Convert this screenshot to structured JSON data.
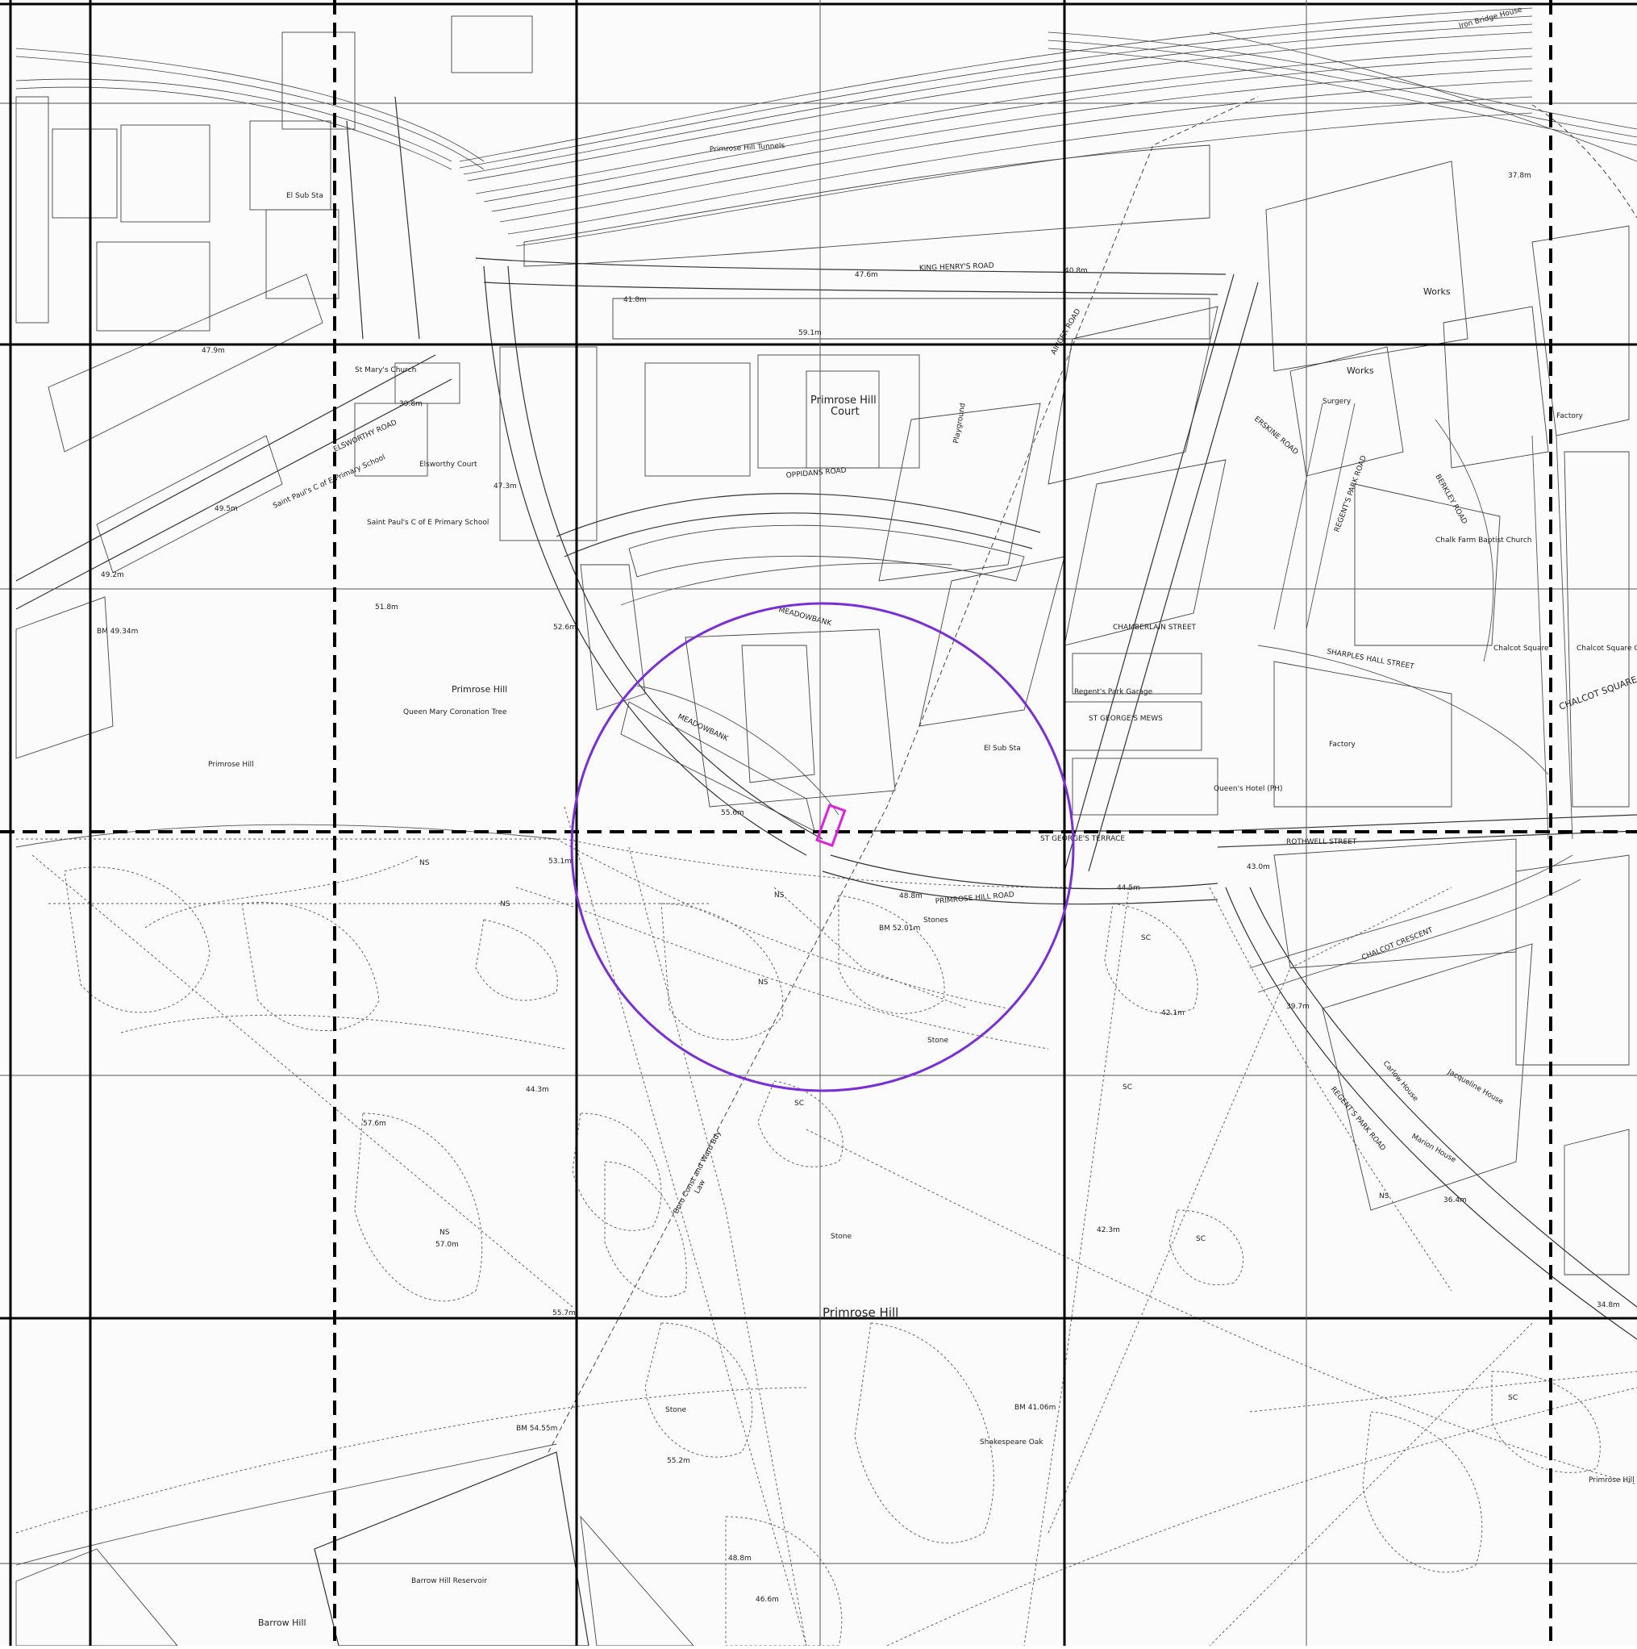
{
  "map": {
    "labels": {
      "primrose_hill_park": "Primrose Hill",
      "primrose_hill_left": "Primrose Hill",
      "primrose_hill_right": "Primrose Hill",
      "primrose_hill_court": "Primrose Hill",
      "primrose_hill_court2": "Court",
      "barrow_hill": "Barrow Hill",
      "barrow_hill_reservoir": "Barrow Hill Reservoir",
      "king_henrys_road": "KING HENRY'S ROAD",
      "primrose_hill_road": "PRIMROSE HILL ROAD",
      "elsworthy_road": "ELSWORTHY ROAD",
      "oppidans_road": "OPPIDANS ROAD",
      "regents_park_road": "REGENT'S PARK ROAD",
      "regents_park_road2": "REGENT'S PARK ROAD",
      "chalcot_square": "CHALCOT SQUARE",
      "chalcot_crescent": "CHALCOT CRESCENT",
      "sharples_hall_street": "SHARPLES HALL STREET",
      "rothwell_street": "ROTHWELL STREET",
      "st_georges_terrace": "ST GEORGE'S TERRACE",
      "st_georges_mews": "ST GEORGE'S MEWS",
      "chamberlain_street": "CHAMBERLAIN STREET",
      "berkley_road": "BERKLEY ROAD",
      "erskine_road": "ERSKINE ROAD",
      "meadowbank": "MEADOWBANK",
      "meadowbank2": "MEADOWBANK",
      "ainger_road": "AINGER ROAD",
      "st_marys_church": "St Mary's Church",
      "elsworthy_court": "Elsworthy Court",
      "saint_pauls_school": "Saint Paul's C of E Primary School",
      "saint_pauls_school2": "Saint Paul's C of E Primary School",
      "works": "Works",
      "works2": "Works",
      "factory": "Factory",
      "factory2": "Factory",
      "regents_park_garage": "Regent's Park Garage",
      "chalk_farm_baptist": "Chalk Farm Baptist Church",
      "chalcot_square_gardens": "Chalcot Square Gardens",
      "chalcot_square_lbl": "Chalcot Square",
      "queens_hotel": "Queen's Hotel (PH)",
      "jacqueline_house": "Jacqueline House",
      "carlow_house": "Carlow House",
      "marlon_house": "Marion House",
      "queen_mary_tree": "Queen Mary Coronation Tree",
      "shakespeare_oak": "Shakespeare Oak",
      "primrose_tunnels": "Primrose Hill Tunnels",
      "playground": "Playground",
      "surgery": "Surgery",
      "el_sub_sta": "El Sub Sta",
      "bm_1": "BM 49.34m",
      "bm_2": "BM 52.01m",
      "bm_3": "BM 54.55m",
      "bm_4": "BM 41.06m",
      "spot_1": "47.9m",
      "spot_2": "39.8m",
      "spot_3": "49.5m",
      "spot_4": "49.2m",
      "spot_5": "51.8m",
      "spot_6": "52.6m",
      "spot_7": "47.3m",
      "spot_8": "53.1m",
      "spot_9": "55.6m",
      "spot_10": "48.8m",
      "spot_11": "44.5m",
      "spot_12": "43.0m",
      "spot_13": "39.7m",
      "spot_14": "42.1m",
      "spot_15": "44.3m",
      "spot_16": "57.6m",
      "spot_17": "57.0m",
      "spot_18": "55.7m",
      "spot_19": "55.2m",
      "spot_20": "48.8m",
      "spot_21": "46.6m",
      "spot_22": "36.4m",
      "spot_23": "42.3m",
      "spot_24": "47.6m",
      "spot_25": "40.8m",
      "spot_26": "41.8m",
      "spot_27": "59.1m",
      "spot_28": "34.8m",
      "spot_29": "37.8m",
      "ns": "NS",
      "sc": "SC",
      "stone": "Stone",
      "stones": "Stones",
      "boundary": "Boro Const and Ward Bdy",
      "boundary2": "Law",
      "iron_bridge_house": "Iron Bridge House"
    },
    "colors": {
      "circle": "#7a2fd6",
      "site": "#e020e0",
      "ink": "#333333"
    }
  }
}
